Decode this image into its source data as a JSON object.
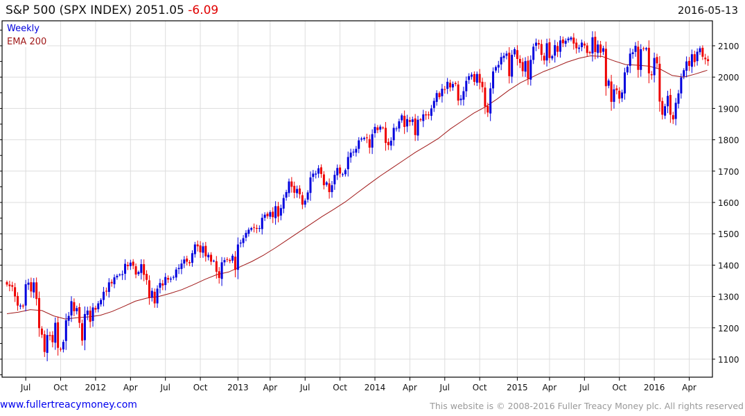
{
  "header": {
    "name": "S&P 500 (SPX INDEX)",
    "last": "2051.05",
    "change": "-6.09",
    "date": "2016-05-13"
  },
  "footer": {
    "site": "www.fullertreacymoney.com",
    "copyright": "This website is © 2008-2016 Fuller Treacy Money plc. All rights reserved"
  },
  "colors": {
    "up": "#0000dd",
    "down": "#ee0000",
    "ema": "#a01818",
    "grid": "#dddddd"
  },
  "chart_data": {
    "type": "candlestick",
    "title": "S&P 500 (SPX INDEX) 2051.05 -6.09",
    "legend": [
      "Weekly",
      "EMA 200"
    ],
    "legend_placement": "top-left",
    "grid": true,
    "ylim": [
      1040,
      2180
    ],
    "yticks": [
      1100,
      1200,
      1300,
      1400,
      1500,
      1600,
      1700,
      1800,
      1900,
      2000,
      2100
    ],
    "xticks": [
      {
        "label": "Jul",
        "week": 7
      },
      {
        "label": "Oct",
        "week": 20
      },
      {
        "label": "2012",
        "week": 33
      },
      {
        "label": "Apr",
        "week": 46
      },
      {
        "label": "Jul",
        "week": 59
      },
      {
        "label": "Oct",
        "week": 72
      },
      {
        "label": "2013",
        "week": 86
      },
      {
        "label": "Apr",
        "week": 98
      },
      {
        "label": "Jul",
        "week": 111
      },
      {
        "label": "Oct",
        "week": 124
      },
      {
        "label": "2014",
        "week": 137
      },
      {
        "label": "Apr",
        "week": 150
      },
      {
        "label": "Jul",
        "week": 163
      },
      {
        "label": "Oct",
        "week": 176
      },
      {
        "label": "2015",
        "week": 190
      },
      {
        "label": "Apr",
        "week": 202
      },
      {
        "label": "Jul",
        "week": 215
      },
      {
        "label": "Oct",
        "week": 228
      },
      {
        "label": "2016",
        "week": 241
      },
      {
        "label": "Apr",
        "week": 254
      }
    ],
    "weekly_start": "2011-05-13",
    "weekly_close": [
      1338,
      1333,
      1331,
      1300,
      1271,
      1271,
      1268,
      1339,
      1344,
      1316,
      1345,
      1292,
      1199,
      1178,
      1123,
      1177,
      1174,
      1154,
      1216,
      1136,
      1131,
      1155,
      1224,
      1238,
      1285,
      1253,
      1263,
      1216,
      1159,
      1244,
      1255,
      1219,
      1265,
      1258,
      1278,
      1289,
      1315,
      1316,
      1345,
      1342,
      1361,
      1366,
      1370,
      1371,
      1404,
      1397,
      1408,
      1398,
      1370,
      1378,
      1403,
      1369,
      1353,
      1295,
      1318,
      1278,
      1325,
      1343,
      1335,
      1362,
      1354,
      1357,
      1362,
      1386,
      1391,
      1405,
      1418,
      1411,
      1406,
      1438,
      1466,
      1460,
      1441,
      1460,
      1428,
      1433,
      1411,
      1414,
      1379,
      1359,
      1409,
      1416,
      1418,
      1413,
      1430,
      1385,
      1466,
      1472,
      1486,
      1503,
      1513,
      1518,
      1520,
      1516,
      1518,
      1551,
      1561,
      1556,
      1569,
      1553,
      1588,
      1555,
      1582,
      1614,
      1633,
      1667,
      1650,
      1631,
      1643,
      1626,
      1593,
      1606,
      1632,
      1680,
      1692,
      1692,
      1709,
      1691,
      1655,
      1664,
      1633,
      1655,
      1688,
      1710,
      1692,
      1690,
      1703,
      1745,
      1759,
      1762,
      1771,
      1798,
      1804,
      1806,
      1805,
      1775,
      1818,
      1841,
      1831,
      1842,
      1838,
      1790,
      1783,
      1797,
      1838,
      1836,
      1859,
      1878,
      1841,
      1866,
      1857,
      1865,
      1815,
      1864,
      1863,
      1881,
      1878,
      1878,
      1900,
      1924,
      1949,
      1936,
      1963,
      1961,
      1985,
      1967,
      1978,
      1978,
      1925,
      1931,
      1955,
      1988,
      2003,
      2008,
      1985,
      2010,
      1982,
      1968,
      1906,
      1887,
      1964,
      2018,
      2032,
      2039,
      2064,
      2068,
      2075,
      2003,
      2071,
      2089,
      2058,
      2045,
      2019,
      2051,
      1995,
      2055,
      2097,
      2110,
      2104,
      2071,
      2053,
      2108,
      2061,
      2067,
      2102,
      2081,
      2117,
      2108,
      2116,
      2123,
      2126,
      2107,
      2092,
      2094,
      2110,
      2101,
      2077,
      2077,
      2127,
      2080,
      2104,
      2078,
      2092,
      1971,
      1989,
      1921,
      1961,
      1958,
      1931,
      1951,
      2015,
      2033,
      2075,
      2079,
      2100,
      2023,
      2089,
      2090,
      2092,
      2012,
      2006,
      2061,
      2044,
      1922,
      1880,
      1907,
      1940,
      1880,
      1865,
      1918,
      1948,
      1999,
      2022,
      2050,
      2036,
      2073,
      2048,
      2081,
      2092,
      2065,
      2057,
      2051
    ],
    "ema200_monthly_start": "2011-05",
    "ema200_monthly": [
      1245,
      1250,
      1258,
      1255,
      1238,
      1228,
      1232,
      1235,
      1240,
      1252,
      1268,
      1285,
      1295,
      1300,
      1310,
      1322,
      1338,
      1355,
      1370,
      1378,
      1395,
      1412,
      1432,
      1455,
      1480,
      1505,
      1530,
      1555,
      1578,
      1602,
      1630,
      1658,
      1685,
      1710,
      1735,
      1760,
      1782,
      1805,
      1835,
      1860,
      1885,
      1905,
      1930,
      1958,
      1982,
      2000,
      2018,
      2032,
      2048,
      2060,
      2068,
      2066,
      2052,
      2040,
      2038,
      2035,
      2025,
      2005,
      2000,
      2010,
      2022
    ]
  }
}
